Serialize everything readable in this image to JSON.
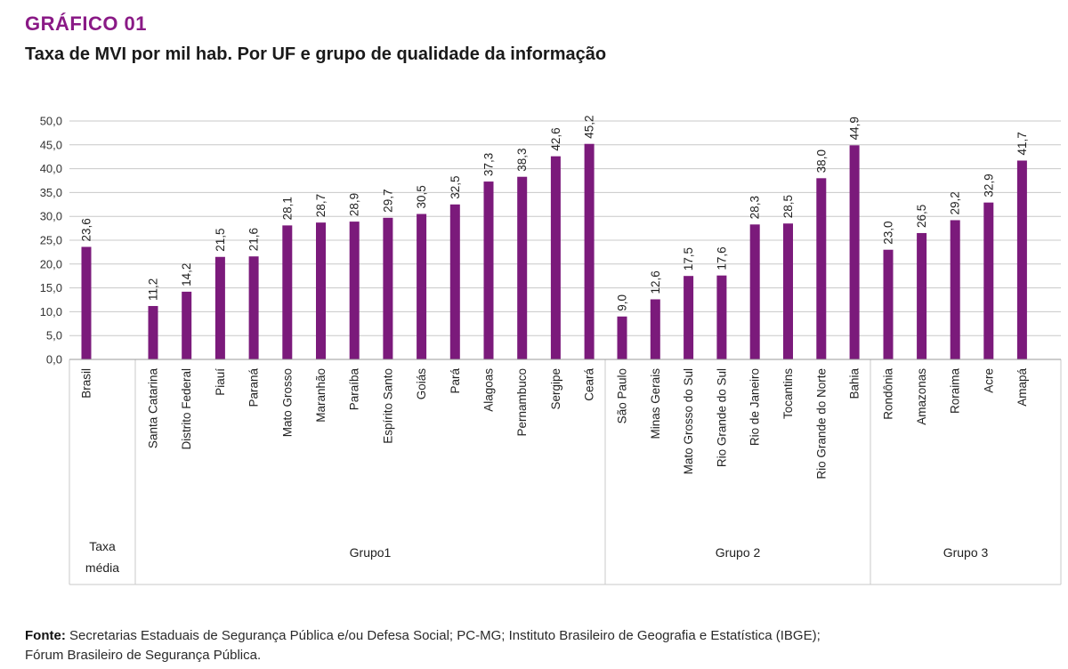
{
  "header": {
    "label": "GRÁFICO 01",
    "title": "Taxa de MVI por mil hab. Por UF e grupo de qualidade da informação"
  },
  "footer": {
    "source_label": "Fonte:",
    "source_line1": "Secretarias Estaduais de Segurança Pública e/ou Defesa Social; PC-MG; Instituto Brasileiro de Geografia e Estatística (IBGE);",
    "source_line2": "Fórum Brasileiro de Segurança Pública."
  },
  "colors": {
    "bar": "#7b1a7b",
    "grid": "#c8c8c8",
    "label_accent": "#8a1a86"
  },
  "chart_data": {
    "type": "bar",
    "title": "Taxa de MVI por mil hab. Por UF e grupo de qualidade da informação",
    "ylim": [
      0,
      50
    ],
    "yticks": [
      "0,0",
      "5,0",
      "10,0",
      "15,0",
      "20,0",
      "25,0",
      "30,0",
      "35,0",
      "40,0",
      "45,0",
      "50,0"
    ],
    "grid": true,
    "groups": [
      {
        "name": "Taxa média",
        "name_lines": [
          "Taxa",
          "média"
        ],
        "categories": [
          "Brasil"
        ],
        "values": [
          23.6
        ],
        "labels": [
          "23,6"
        ]
      },
      {
        "name": "Grupo1",
        "name_lines": [
          "Grupo1"
        ],
        "categories": [
          "Santa Catarina",
          "Distrito Federal",
          "Piauí",
          "Paraná",
          "Mato Grosso",
          "Maranhão",
          "Paraíba",
          "Espírito Santo",
          "Goiás",
          "Pará",
          "Alagoas",
          "Pernambuco",
          "Sergipe",
          "Ceará"
        ],
        "values": [
          11.2,
          14.2,
          21.5,
          21.6,
          28.1,
          28.7,
          28.9,
          29.7,
          30.5,
          32.5,
          37.3,
          38.3,
          42.6,
          45.2
        ],
        "labels": [
          "11,2",
          "14,2",
          "21,5",
          "21,6",
          "28,1",
          "28,7",
          "28,9",
          "29,7",
          "30,5",
          "32,5",
          "37,3",
          "38,3",
          "42,6",
          "45,2"
        ]
      },
      {
        "name": "Grupo 2",
        "name_lines": [
          "Grupo 2"
        ],
        "categories": [
          "São Paulo",
          "Minas Gerais",
          "Mato Grosso do Sul",
          "Rio Grande do Sul",
          "Rio de Janeiro",
          "Tocantins",
          "Rio Grande do Norte",
          "Bahia"
        ],
        "values": [
          9.0,
          12.6,
          17.5,
          17.6,
          28.3,
          28.5,
          38.0,
          44.9
        ],
        "labels": [
          "9,0",
          "12,6",
          "17,5",
          "17,6",
          "28,3",
          "28,5",
          "38,0",
          "44,9"
        ]
      },
      {
        "name": "Grupo 3",
        "name_lines": [
          "Grupo 3"
        ],
        "categories": [
          "Rondônia",
          "Amazonas",
          "Roraima",
          "Acre",
          "Amapá"
        ],
        "values": [
          23.0,
          26.5,
          29.2,
          32.9,
          41.7
        ],
        "labels": [
          "23,0",
          "26,5",
          "29,2",
          "32,9",
          "41,7"
        ]
      }
    ]
  }
}
